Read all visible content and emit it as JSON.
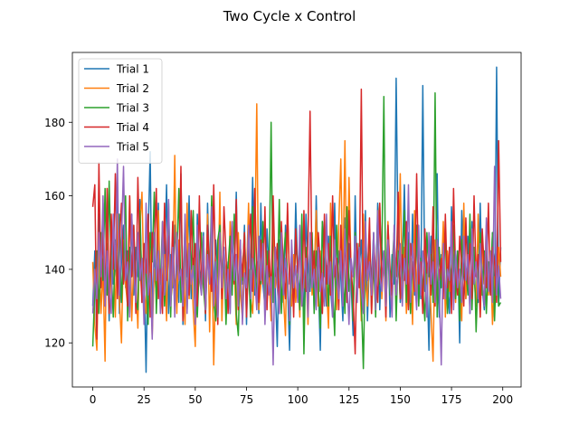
{
  "chart_data": {
    "type": "line",
    "title": "Two Cycle x Control",
    "xlabel": "",
    "ylabel": "",
    "xlim": [
      -9.95,
      208.95
    ],
    "ylim": [
      108,
      199
    ],
    "xticks": [
      0,
      25,
      50,
      75,
      100,
      125,
      150,
      175,
      200
    ],
    "yticks": [
      120,
      140,
      160,
      180
    ],
    "grid": false,
    "legend_position": "top-left",
    "x_count": 200,
    "series": [
      {
        "name": "Trial 1",
        "color": "#1f77b4",
        "values": [
          130,
          145,
          121,
          155,
          137,
          158,
          132,
          147,
          126,
          150,
          136,
          140,
          160,
          128,
          142,
          152,
          135,
          145,
          128,
          155,
          133,
          146,
          138,
          159,
          131,
          140,
          112,
          148,
          172,
          125,
          145,
          136,
          158,
          130,
          150,
          142,
          163,
          128,
          144,
          135,
          152,
          140,
          131,
          166,
          125,
          148,
          138,
          160,
          132,
          143,
          128,
          155,
          140,
          135,
          150,
          126,
          158,
          137,
          144,
          132,
          148,
          139,
          155,
          133,
          146,
          130,
          142,
          128,
          150,
          138,
          161,
          131,
          145,
          136,
          152,
          125,
          148,
          140,
          165,
          133,
          142,
          128,
          158,
          136,
          130,
          151,
          140,
          127,
          156,
          135,
          119,
          148,
          143,
          131,
          152,
          136,
          118,
          145,
          130,
          158,
          139,
          133,
          147,
          125,
          155,
          140,
          134,
          148,
          129,
          160,
          137,
          118,
          153,
          141,
          130,
          149,
          135,
          127,
          158,
          132,
          145,
          138,
          126,
          154,
          131,
          147,
          137,
          122,
          160,
          134,
          140,
          148,
          131,
          156,
          126,
          143,
          137,
          150,
          133,
          158,
          129,
          146,
          140,
          135,
          152,
          127,
          144,
          136,
          192,
          145,
          131,
          142,
          163,
          137,
          150,
          128,
          155,
          133,
          146,
          141,
          132,
          190,
          134,
          140,
          118,
          149,
          136,
          132,
          166,
          127,
          144,
          139,
          150,
          135,
          128,
          157,
          141,
          133,
          145,
          120,
          156,
          138,
          132,
          149,
          128,
          153,
          137,
          142,
          131,
          158,
          135,
          129,
          147,
          139,
          133,
          150,
          127,
          195,
          130,
          146
        ]
      },
      {
        "name": "Trial 2",
        "color": "#ff7f0e",
        "values": [
          142,
          125,
          118,
          150,
          128,
          140,
          115,
          162,
          130,
          138,
          145,
          127,
          155,
          132,
          120,
          148,
          136,
          130,
          160,
          126,
          142,
          138,
          124,
          152,
          161,
          135,
          128,
          147,
          150,
          122,
          140,
          133,
          156,
          129,
          138,
          144,
          126,
          152,
          131,
          137,
          171,
          128,
          148,
          135,
          140,
          125,
          158,
          132,
          143,
          129,
          119,
          150,
          137,
          134,
          145,
          128,
          155,
          123,
          149,
          114,
          138,
          132,
          161,
          126,
          144,
          137,
          130,
          153,
          135,
          141,
          125,
          150,
          133,
          127,
          146,
          138,
          158,
          132,
          128,
          144,
          185,
          129,
          136,
          150,
          130,
          143,
          138,
          126,
          153,
          135,
          140,
          128,
          147,
          133,
          122,
          156,
          137,
          130,
          144,
          131,
          139,
          127,
          152,
          135,
          141,
          125,
          148,
          133,
          138,
          156,
          130,
          145,
          128,
          150,
          136,
          124,
          158,
          133,
          141,
          129,
          152,
          170,
          136,
          175,
          133,
          165,
          140,
          128,
          147,
          133,
          142,
          126,
          155,
          137,
          130,
          148,
          128,
          143,
          137,
          150,
          158,
          132,
          145,
          126,
          153,
          138,
          130,
          147,
          134,
          140,
          166,
          131,
          146,
          128,
          139,
          143,
          125,
          156,
          133,
          147,
          140,
          129,
          150,
          136,
          142,
          128,
          115,
          148,
          130,
          140,
          137,
          153,
          127,
          145,
          134,
          138,
          149,
          131,
          144,
          135,
          126,
          158,
          132,
          141,
          135,
          148,
          138,
          130,
          155,
          127,
          146,
          136,
          152,
          133,
          143,
          125,
          138,
          135,
          146,
          138
        ]
      },
      {
        "name": "Trial 3",
        "color": "#2ca02c",
        "values": [
          119,
          135,
          145,
          128,
          150,
          137,
          162,
          133,
          164,
          140,
          127,
          148,
          135,
          155,
          131,
          143,
          160,
          126,
          146,
          138,
          152,
          132,
          129,
          156,
          134,
          147,
          138,
          125,
          150,
          142,
          161,
          128,
          144,
          136,
          153,
          130,
          140,
          158,
          127,
          148,
          133,
          143,
          162,
          131,
          137,
          152,
          129,
          145,
          140,
          156,
          133,
          127,
          142,
          150,
          135,
          128,
          145,
          138,
          160,
          131,
          126,
          148,
          152,
          137,
          144,
          125,
          141,
          149,
          133,
          155,
          128,
          122,
          146,
          137,
          150,
          134,
          140,
          127,
          157,
          142,
          132,
          149,
          136,
          153,
          129,
          145,
          138,
          180,
          131,
          146,
          135,
          159,
          128,
          142,
          150,
          137,
          125,
          143,
          132,
          148,
          139,
          129,
          155,
          117,
          146,
          133,
          140,
          150,
          128,
          145,
          136,
          124,
          153,
          138,
          141,
          130,
          149,
          135,
          122,
          152,
          133,
          144,
          139,
          128,
          157,
          134,
          140,
          126,
          150,
          136,
          147,
          132,
          113,
          145,
          139,
          151,
          130,
          142,
          127,
          156,
          136,
          144,
          187,
          129,
          147,
          133,
          140,
          150,
          126,
          145,
          132,
          139,
          156,
          131,
          148,
          128,
          142,
          137,
          152,
          130,
          143,
          135,
          126,
          150,
          138,
          144,
          131,
          188,
          127,
          146,
          135,
          141,
          150,
          128,
          143,
          137,
          152,
          132,
          145,
          126,
          148,
          138,
          140,
          133,
          155,
          129,
          146,
          123,
          139,
          150,
          133,
          145,
          128,
          142,
          137,
          150,
          126,
          144,
          130,
          131
        ]
      },
      {
        "name": "Trial 4",
        "color": "#d62728",
        "values": [
          157,
          163,
          121,
          169,
          135,
          150,
          130,
          162,
          128,
          155,
          140,
          166,
          132,
          148,
          158,
          136,
          145,
          130,
          160,
          138,
          152,
          128,
          165,
          143,
          131,
          147,
          139,
          155,
          127,
          150,
          145,
          162,
          132,
          140,
          128,
          158,
          137,
          149,
          134,
          153,
          129,
          145,
          138,
          168,
          126,
          150,
          142,
          133,
          156,
          139,
          147,
          130,
          160,
          135,
          143,
          128,
          152,
          140,
          134,
          163,
          137,
          125,
          149,
          132,
          157,
          144,
          128,
          141,
          153,
          136,
          159,
          129,
          146,
          138,
          150,
          127,
          143,
          155,
          134,
          162,
          140,
          131,
          148,
          136,
          157,
          129,
          145,
          133,
          160,
          138,
          147,
          128,
          153,
          140,
          132,
          158,
          136,
          144,
          127,
          151,
          139,
          146,
          130,
          156,
          134,
          149,
          183,
          137,
          145,
          131,
          150,
          142,
          128,
          155,
          136,
          147,
          133,
          160,
          138,
          143,
          129,
          152,
          137,
          148,
          131,
          156,
          140,
          133,
          117,
          147,
          135,
          189,
          130,
          143,
          137,
          154,
          128,
          148,
          139,
          131,
          158,
          136,
          145,
          127,
          152,
          140,
          133,
          149,
          138,
          161,
          132,
          144,
          137,
          153,
          129,
          147,
          141,
          134,
          166,
          136,
          142,
          128,
          151,
          139,
          145,
          133,
          157,
          130,
          148,
          137,
          143,
          132,
          155,
          135,
          146,
          128,
          162,
          139,
          133,
          149,
          141,
          130,
          154,
          136,
          147,
          132,
          160,
          138,
          144,
          127,
          151,
          140,
          135,
          158,
          133,
          146,
          142,
          131,
          175,
          142
        ]
      },
      {
        "name": "Trial 5",
        "color": "#9467bd",
        "values": [
          128,
          140,
          132,
          150,
          138,
          160,
          130,
          145,
          135,
          128,
          155,
          140,
          170,
          133,
          148,
          168,
          137,
          142,
          127,
          155,
          140,
          131,
          150,
          137,
          143,
          125,
          158,
          133,
          139,
          121,
          150,
          137,
          145,
          128,
          153,
          133,
          140,
          159,
          130,
          146,
          127,
          150,
          137,
          140,
          130,
          155,
          128,
          147,
          136,
          141,
          125,
          152,
          138,
          133,
          149,
          129,
          144,
          136,
          157,
          130,
          142,
          127,
          150,
          135,
          146,
          132,
          140,
          128,
          153,
          137,
          144,
          130,
          148,
          125,
          139,
          135,
          152,
          132,
          143,
          138,
          129,
          149,
          137,
          147,
          125,
          141,
          133,
          138,
          114,
          146,
          135,
          128,
          150,
          133,
          143,
          138,
          126,
          148,
          135,
          141,
          131,
          152,
          130,
          137,
          143,
          127,
          150,
          135,
          140,
          129,
          146,
          134,
          139,
          130,
          155,
          136,
          142,
          127,
          148,
          138,
          132,
          145,
          130,
          151,
          137,
          125,
          143,
          138,
          149,
          131,
          146,
          135,
          128,
          153,
          137,
          142,
          133,
          150,
          129,
          156,
          138,
          134,
          145,
          130,
          148,
          136,
          127,
          152,
          133,
          140,
          147,
          130,
          143,
          136,
          163,
          131,
          147,
          138,
          129,
          152,
          133,
          145,
          139,
          127,
          150,
          136,
          142,
          131,
          148,
          135,
          114,
          147,
          132,
          140,
          137,
          153,
          129,
          145,
          135,
          140,
          131,
          149,
          137,
          144,
          128,
          151,
          136,
          142,
          132,
          147,
          138,
          130,
          154,
          134,
          145,
          131,
          168,
          133,
          141,
          132
        ]
      }
    ]
  }
}
